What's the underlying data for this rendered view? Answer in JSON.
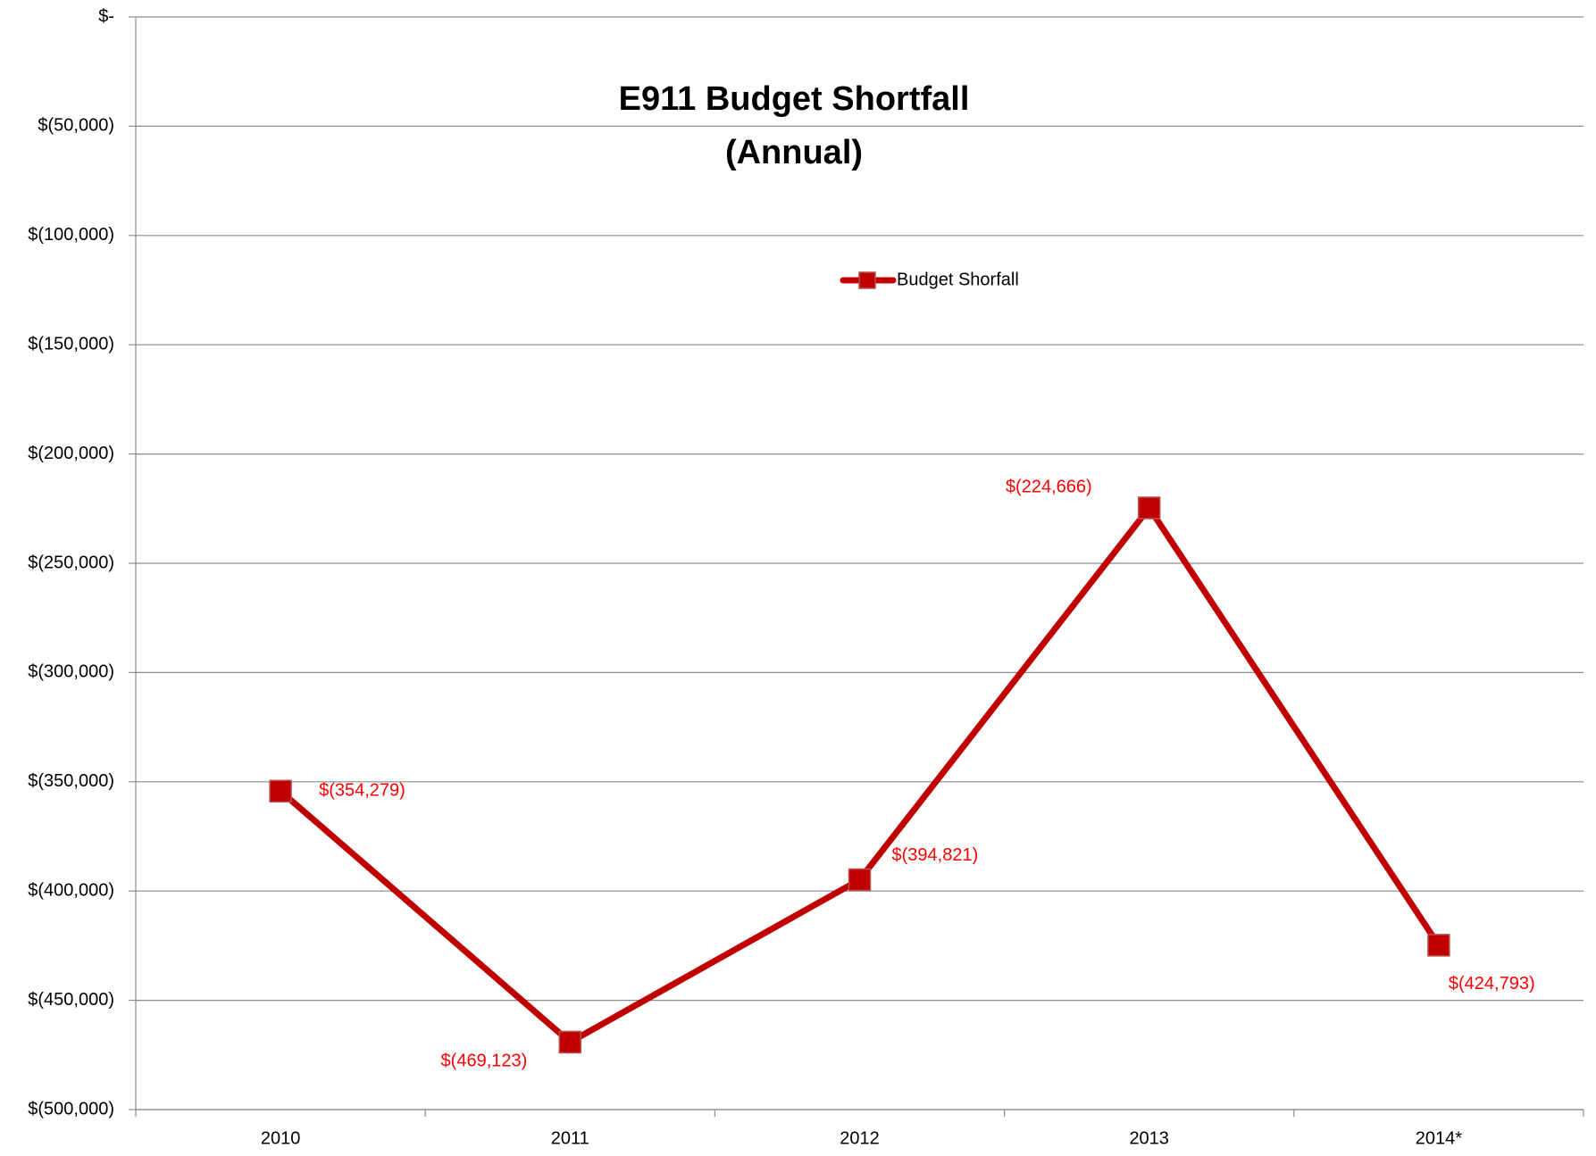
{
  "chart_data": {
    "type": "line",
    "title": "E911 Budget Shortfall",
    "subtitle": "(Annual)",
    "categories": [
      "2010",
      "2011",
      "2012",
      "2013",
      "2014*"
    ],
    "series": [
      {
        "name": "Budget Shorfall",
        "color": "#c00000",
        "values": [
          -354279,
          -469123,
          -394821,
          -224666,
          -424793
        ],
        "value_labels": [
          "$(354,279)",
          "$(469,123)",
          "$(394,821)",
          "$(224,666)",
          "$(424,793)"
        ]
      }
    ],
    "ylim": [
      -500000,
      0
    ],
    "yticks": [
      {
        "value": -500000,
        "label": "$(500,000)"
      },
      {
        "value": -450000,
        "label": "$(450,000)"
      },
      {
        "value": -400000,
        "label": "$(400,000)"
      },
      {
        "value": -350000,
        "label": "$(350,000)"
      },
      {
        "value": -300000,
        "label": "$(300,000)"
      },
      {
        "value": -250000,
        "label": "$(250,000)"
      },
      {
        "value": -200000,
        "label": "$(200,000)"
      },
      {
        "value": -150000,
        "label": "$(150,000)"
      },
      {
        "value": -100000,
        "label": "$(100,000)"
      },
      {
        "value": -50000,
        "label": "$(50,000)"
      },
      {
        "value": 0,
        "label": "$-"
      }
    ],
    "grid": true,
    "label_color": "#ff0000"
  }
}
